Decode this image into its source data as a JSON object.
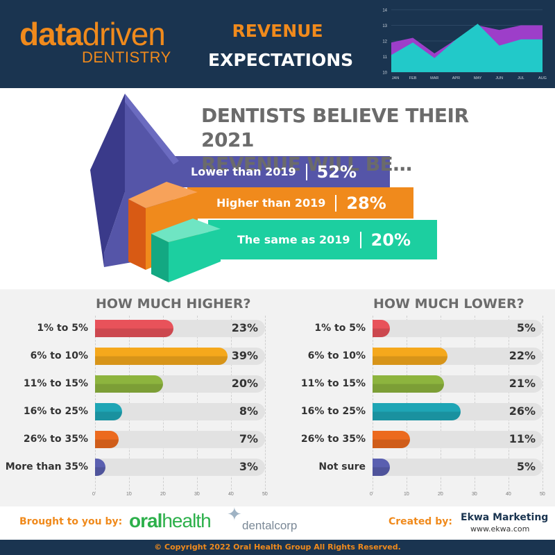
{
  "header": {
    "logo_data": "data",
    "logo_driven": "driven",
    "logo_dentistry": "DENTISTRY",
    "title_line1": "REVENUE",
    "title_line2": "EXPECTATIONS"
  },
  "colors": {
    "navy": "#1a3450",
    "orange": "#f08a1c",
    "purple": "#5555a8",
    "teal": "#1ccfa0",
    "red": "#e8525a",
    "yellow": "#f5a81c",
    "green": "#8db43e",
    "cyan": "#1ea5b5",
    "deep_orange": "#ec6a1e",
    "indigo": "#5a5fb0"
  },
  "top_question": {
    "line1": "DENTISTS BELIEVE THEIR 2021",
    "line2": "REVENUE WILL BE…",
    "bands": [
      {
        "label": "Lower than 2019",
        "value": "52%"
      },
      {
        "label": "Higher than 2019",
        "value": "28%"
      },
      {
        "label": "The same as 2019",
        "value": "20%"
      }
    ]
  },
  "chart_data": [
    {
      "type": "area",
      "title": "",
      "categories": [
        "JAN",
        "FEB",
        "MAR",
        "APR",
        "MAY",
        "JUN",
        "JUL",
        "AUG"
      ],
      "ylim": [
        10,
        14
      ],
      "yticks": [
        10,
        11,
        12,
        13,
        14
      ],
      "series": [
        {
          "values": [
            11.9,
            12.2,
            11.2,
            12.1,
            13.0,
            12.7,
            13.0,
            13.0
          ]
        },
        {
          "values": [
            11.1,
            11.9,
            10.9,
            12.1,
            13.1,
            11.7,
            12.1,
            12.1
          ]
        }
      ]
    },
    {
      "type": "bar",
      "orientation": "horizontal",
      "title": "HOW MUCH HIGHER?",
      "categories": [
        "1% to 5%",
        "6% to 10%",
        "11% to 15%",
        "16% to 25%",
        "26% to 35%",
        "More than 35%"
      ],
      "values": [
        23,
        39,
        20,
        8,
        7,
        3
      ],
      "value_labels": [
        "23%",
        "39%",
        "20%",
        "8%",
        "7%",
        "3%"
      ],
      "xlim": [
        0,
        50
      ],
      "xticks": [
        0,
        10,
        20,
        30,
        40,
        50
      ]
    },
    {
      "type": "bar",
      "orientation": "horizontal",
      "title": "HOW MUCH LOWER?",
      "categories": [
        "1% to 5%",
        "6% to 10%",
        "11% to 15%",
        "16% to 25%",
        "26% to 35%",
        "Not sure"
      ],
      "values": [
        5,
        22,
        21,
        26,
        11,
        5
      ],
      "value_labels": [
        "5%",
        "22%",
        "21%",
        "26%",
        "11%",
        "5%"
      ],
      "xlim": [
        0,
        50
      ],
      "xticks": [
        0,
        10,
        20,
        30,
        40,
        50
      ]
    }
  ],
  "footer": {
    "brought_label": "Brought to you by:",
    "oralhealth_bold": "oral",
    "oralhealth_thin": "health",
    "dentalcorp": "dentalcorp",
    "created_label": "Created by:",
    "ekwa_name": "Ekwa Marketing",
    "ekwa_url": "www.ekwa.com",
    "copyright": "© Copyright 2022 Oral Health Group All Rights Reserved."
  }
}
